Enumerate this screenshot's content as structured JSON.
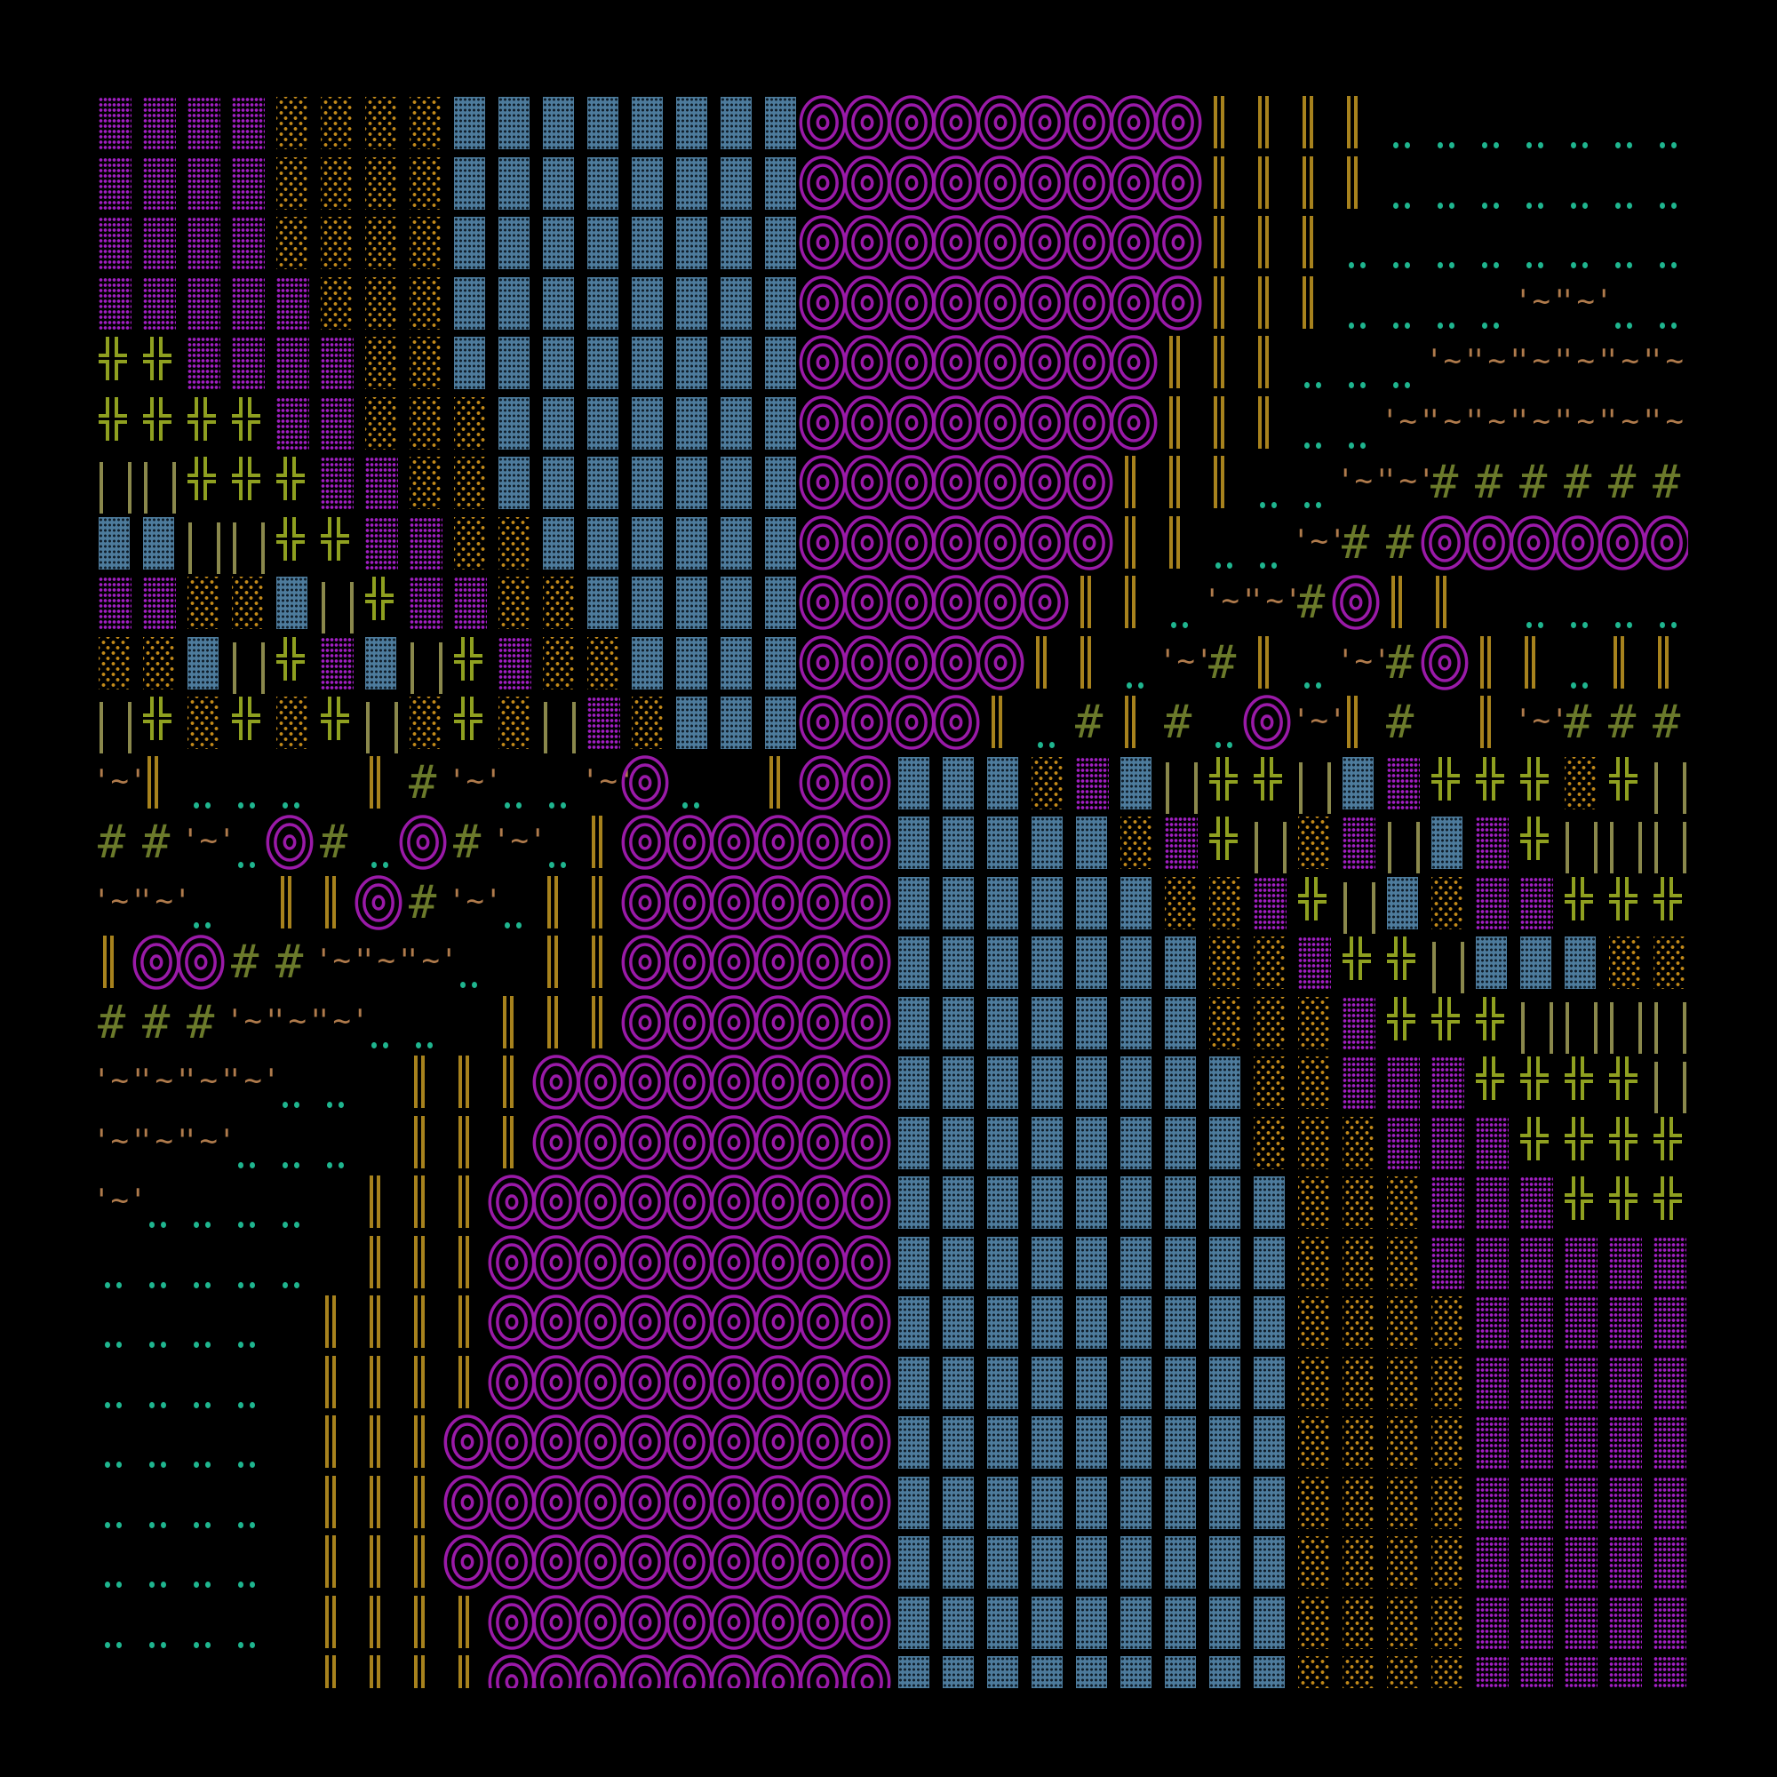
{
  "glyph_legend": {
    "P": "purple-dense-dots",
    "O": "orange-sparse-dots",
    "B": "blue-block",
    "@": "concentric-circles",
    "|": "double-bar",
    "d": "teal-double-dot",
    "~": "quote-tilde",
    "#": "hash",
    "+": "double-cross",
    "l": "thin-bar-pair",
    " ": "blank"
  },
  "glyph_text": {
    "tilde": "'~'",
    "hash": "#"
  },
  "colors": {
    "background": "#000000",
    "purple_dots": "#a11fc2",
    "orange_dots": "#c38a1a",
    "blue_block": "#4d7b9c",
    "circles": "#9a1aa8",
    "double_bar": "#a7821d",
    "teal_dots": "#1fb58f",
    "tilde": "#b07b4c",
    "hash": "#6b7a2b",
    "cross": "#8fa020",
    "thin_bar": "#8a884c"
  },
  "rows": [
    "PPPPOOOOBBBBBBBB@@@@@@@@@||||ddddddd",
    "PPPPOOOOBBBBBBBB@@@@@@@@@||||ddddddd",
    "PPPPOOOOBBBBBBBB@@@@@@@@@|||dddddddd",
    "PPPPPOOOBBBBBBBB@@@@@@@@@|||dddd~~dd",
    "++PPPPOOBBBBBBBB@@@@@@@@|||ddd~~~~~~",
    "++++PPOOOBBBBBBB@@@@@@@@|||dd~~~~~~~",
    "ll+++PPOOBBBBBBB@@@@@@@|||dd~~######",
    "BBll++PPOOBBBBBB@@@@@@@||dd~##@@@@@@",
    "PPOOBl+PPOOBBBBB@@@@@@||d~~#@|| dddd",
    "OOBl+PBl+POOBBBB@@@@@||d~#|d~#@||d||",
    "l+O+O+lO+OlPOBBB@@@@|d#|#d@~|# |~###",
    "~|ddd |#~dd~@d |@@BBBOPBl++lBP+++O+l",
    "##~d@#d@#~d|@@@@@@BBBBBOP+lOPlBP+lll",
    "~~d ||@#~d||@@@@@@BBBBBBOOP+lBOPP+++",
    "|@@##~~~d ||@@@@@@BBBBBBBOOP++lBBBOO",
    "###~~~dd |||@@@@@@BBBBBBBOOOP+++llll",
    "~~~~dd |||@@@@@@@@BBBBBBBBOOPPP++++l",
    "~~~ddd |||@@@@@@@@BBBBBBBBOOOPPP++++",
    "~dddd |||@@@@@@@@@BBBBBBBBBOOOPPP+++",
    "ddddd |||@@@@@@@@@BBBBBBBBBOOOPPPPPP",
    "dddd ||||@@@@@@@@@BBBBBBBBBOOOOPPPPP",
    "dddd ||||@@@@@@@@@BBBBBBBBBOOOOPPPPP",
    "dddd |||@@@@@@@@@@BBBBBBBBBOOOOPPPPP",
    "dddd |||@@@@@@@@@@BBBBBBBBBOOOOPPPPP",
    "dddd |||@@@@@@@@@@BBBBBBBBBOOOOPPPPP",
    "dddd ||||@@@@@@@@@BBBBBBBBBOOOOPPPPP",
    "dddd ||||@@@@@@@@@BBBBBBBBBOOOOPPPPP"
  ]
}
